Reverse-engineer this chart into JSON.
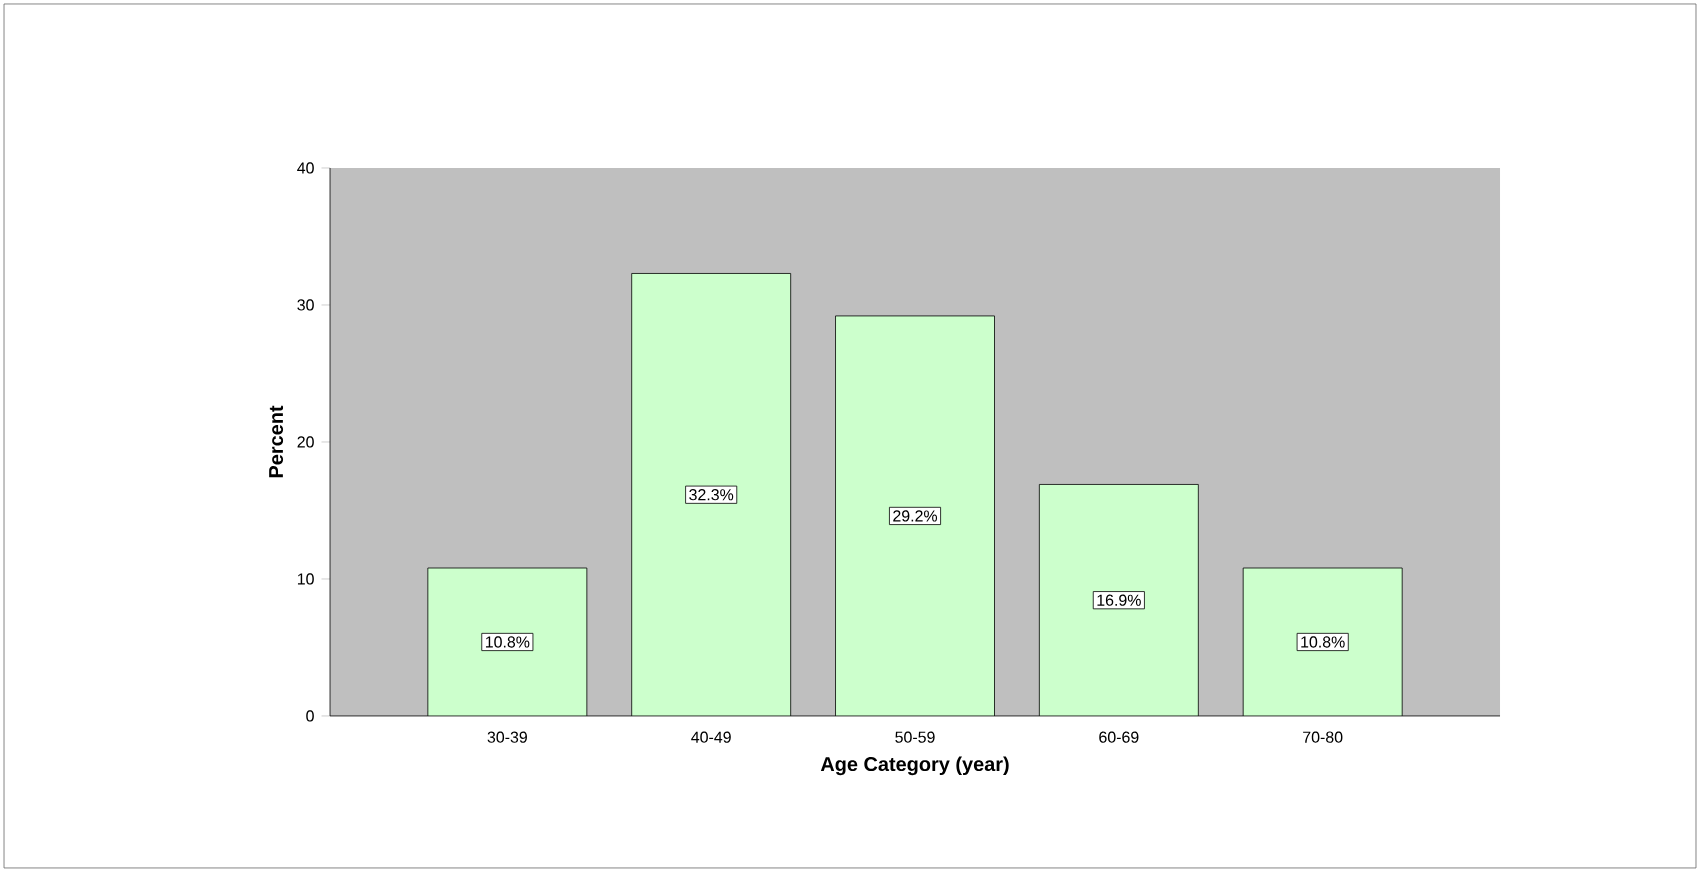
{
  "chart_data": {
    "type": "bar",
    "xlabel": "Age Category (year)",
    "ylabel": "Percent",
    "categories": [
      "30-39",
      "40-49",
      "50-59",
      "60-69",
      "70-80"
    ],
    "values": [
      10.8,
      32.3,
      29.2,
      16.9,
      10.8
    ],
    "value_labels": [
      "10.8%",
      "32.3%",
      "29.2%",
      "16.9%",
      "10.8%"
    ],
    "color": "#ccffcc",
    "ylim": [
      0,
      40
    ],
    "yticks": [
      0,
      10,
      20,
      30,
      40
    ],
    "grid": false
  }
}
